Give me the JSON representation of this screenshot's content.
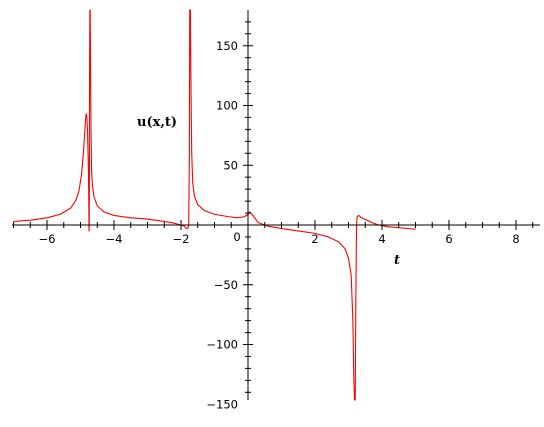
{
  "chart_data": {
    "type": "line",
    "title": "",
    "xlabel": "t",
    "ylabel": "u(x,t)",
    "xlim": [
      -7,
      9
    ],
    "ylim": [
      -175,
      180
    ],
    "xticks": [
      -6,
      -4,
      -2,
      2,
      4,
      6,
      8
    ],
    "yticks": [
      -150,
      -100,
      -50,
      50,
      100,
      150
    ],
    "xtick_labels": [
      "−6",
      "−4",
      "−2",
      "2",
      "4",
      "6",
      "8"
    ],
    "ytick_labels": [
      "−150",
      "−100",
      "−50",
      "50",
      "100",
      "150"
    ],
    "origin_label": "0",
    "grid": false,
    "legend": "none",
    "line_color": "#ff0000",
    "series": [
      {
        "points": [
          [
            -7.0,
            3
          ],
          [
            -6.5,
            4
          ],
          [
            -6.0,
            6
          ],
          [
            -5.6,
            9
          ],
          [
            -5.3,
            14
          ],
          [
            -5.15,
            20
          ],
          [
            -5.05,
            28
          ],
          [
            -4.97,
            42
          ],
          [
            -4.92,
            58
          ],
          [
            -4.88,
            75
          ],
          [
            -4.85,
            88
          ],
          [
            -4.83,
            93
          ],
          [
            -4.81,
            90
          ],
          [
            -4.79,
            78
          ],
          [
            -4.77,
            55
          ],
          [
            -4.76,
            40
          ],
          [
            -4.755,
            25
          ],
          [
            -4.75,
            10
          ],
          [
            -4.748,
            -3
          ],
          [
            -4.745,
            -5
          ],
          [
            -4.74,
            0
          ],
          [
            -4.735,
            40
          ],
          [
            -4.73,
            120
          ],
          [
            -4.72,
            180
          ],
          [
            -4.71,
            180
          ],
          [
            -4.7,
            135
          ],
          [
            -4.69,
            90
          ],
          [
            -4.67,
            45
          ],
          [
            -4.64,
            32
          ],
          [
            -4.6,
            24
          ],
          [
            -4.5,
            16
          ],
          [
            -4.3,
            11
          ],
          [
            -4.0,
            8
          ],
          [
            -3.5,
            6
          ],
          [
            -3.0,
            5
          ],
          [
            -2.5,
            3
          ],
          [
            -2.2,
            1.5
          ],
          [
            -2.0,
            0
          ],
          [
            -1.9,
            -1
          ],
          [
            -1.85,
            -2.5
          ],
          [
            -1.8,
            -3
          ],
          [
            -1.77,
            0
          ],
          [
            -1.75,
            60
          ],
          [
            -1.74,
            180
          ],
          [
            -1.72,
            180
          ],
          [
            -1.7,
            110
          ],
          [
            -1.68,
            60
          ],
          [
            -1.65,
            35
          ],
          [
            -1.6,
            24
          ],
          [
            -1.5,
            17
          ],
          [
            -1.3,
            12
          ],
          [
            -1.0,
            9
          ],
          [
            -0.6,
            7
          ],
          [
            -0.3,
            6
          ],
          [
            -0.1,
            7
          ],
          [
            0.0,
            9
          ],
          [
            0.05,
            11
          ],
          [
            0.12,
            9
          ],
          [
            0.3,
            2
          ],
          [
            0.6,
            -1
          ],
          [
            1.0,
            -3
          ],
          [
            1.5,
            -5
          ],
          [
            2.0,
            -7
          ],
          [
            2.4,
            -10
          ],
          [
            2.7,
            -14
          ],
          [
            2.9,
            -20
          ],
          [
            3.0,
            -28
          ],
          [
            3.08,
            -42
          ],
          [
            3.13,
            -80
          ],
          [
            3.16,
            -130
          ],
          [
            3.18,
            -175
          ],
          [
            3.2,
            -175
          ],
          [
            3.22,
            -60
          ],
          [
            3.24,
            0
          ],
          [
            3.26,
            7
          ],
          [
            3.3,
            8
          ],
          [
            3.4,
            6
          ],
          [
            3.55,
            4
          ],
          [
            3.7,
            2
          ],
          [
            3.9,
            0
          ],
          [
            4.2,
            -1.5
          ],
          [
            4.6,
            -2.5
          ],
          [
            5.0,
            -3.5
          ]
        ]
      }
    ]
  }
}
